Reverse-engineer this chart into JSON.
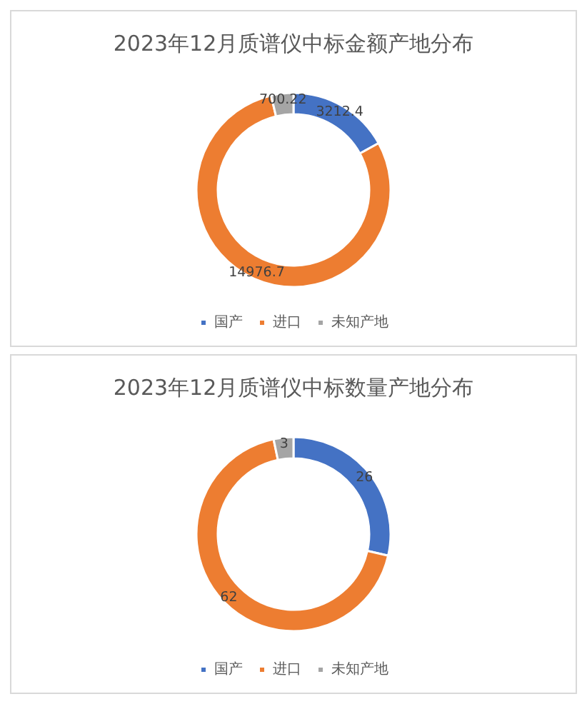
{
  "chart_data": [
    {
      "type": "donut",
      "title": "2023年12月质谱仪中标金额产地分布",
      "categories": [
        "国产",
        "进口",
        "未知产地"
      ],
      "values": [
        3212.4,
        14976.7,
        700.22
      ],
      "colors": [
        "#4472c4",
        "#ed7d31",
        "#a5a5a5"
      ],
      "data_labels": true,
      "legend": "bottom"
    },
    {
      "type": "donut",
      "title": "2023年12月质谱仪中标数量产地分布",
      "categories": [
        "国产",
        "进口",
        "未知产地"
      ],
      "values": [
        26,
        62,
        3
      ],
      "colors": [
        "#4472c4",
        "#ed7d31",
        "#a5a5a5"
      ],
      "data_labels": true,
      "legend": "bottom"
    }
  ]
}
